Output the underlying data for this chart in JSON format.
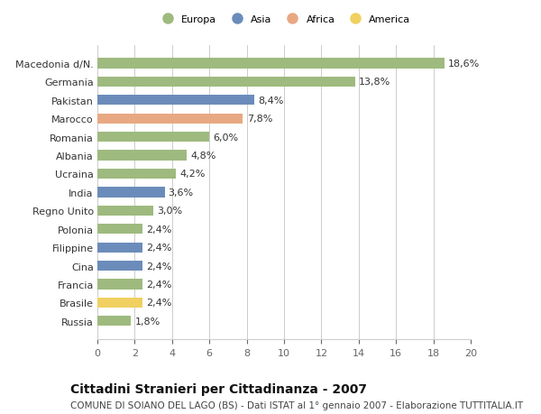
{
  "categories": [
    "Russia",
    "Brasile",
    "Francia",
    "Cina",
    "Filippine",
    "Polonia",
    "Regno Unito",
    "India",
    "Ucraina",
    "Albania",
    "Romania",
    "Marocco",
    "Pakistan",
    "Germania",
    "Macedonia d/N."
  ],
  "values": [
    1.8,
    2.4,
    2.4,
    2.4,
    2.4,
    2.4,
    3.0,
    3.6,
    4.2,
    4.8,
    6.0,
    7.8,
    8.4,
    13.8,
    18.6
  ],
  "labels": [
    "1,8%",
    "2,4%",
    "2,4%",
    "2,4%",
    "2,4%",
    "2,4%",
    "3,0%",
    "3,6%",
    "4,2%",
    "4,8%",
    "6,0%",
    "7,8%",
    "8,4%",
    "13,8%",
    "18,6%"
  ],
  "continents": [
    "Europa",
    "America",
    "Europa",
    "Asia",
    "Asia",
    "Europa",
    "Europa",
    "Asia",
    "Europa",
    "Europa",
    "Europa",
    "Africa",
    "Asia",
    "Europa",
    "Europa"
  ],
  "continent_colors": {
    "Europa": "#9eba7e",
    "Asia": "#6b8cba",
    "Africa": "#e8a882",
    "America": "#f0d060"
  },
  "legend_order": [
    "Europa",
    "Asia",
    "Africa",
    "America"
  ],
  "xlim": [
    0,
    20
  ],
  "xticks": [
    0,
    2,
    4,
    6,
    8,
    10,
    12,
    14,
    16,
    18,
    20
  ],
  "title": "Cittadini Stranieri per Cittadinanza - 2007",
  "subtitle": "COMUNE DI SOIANO DEL LAGO (BS) - Dati ISTAT al 1° gennaio 2007 - Elaborazione TUTTITALIA.IT",
  "bg_color": "#ffffff",
  "grid_color": "#cccccc",
  "bar_height": 0.55,
  "label_fontsize": 8.0,
  "tick_fontsize": 8.0,
  "title_fontsize": 10,
  "subtitle_fontsize": 7.5
}
